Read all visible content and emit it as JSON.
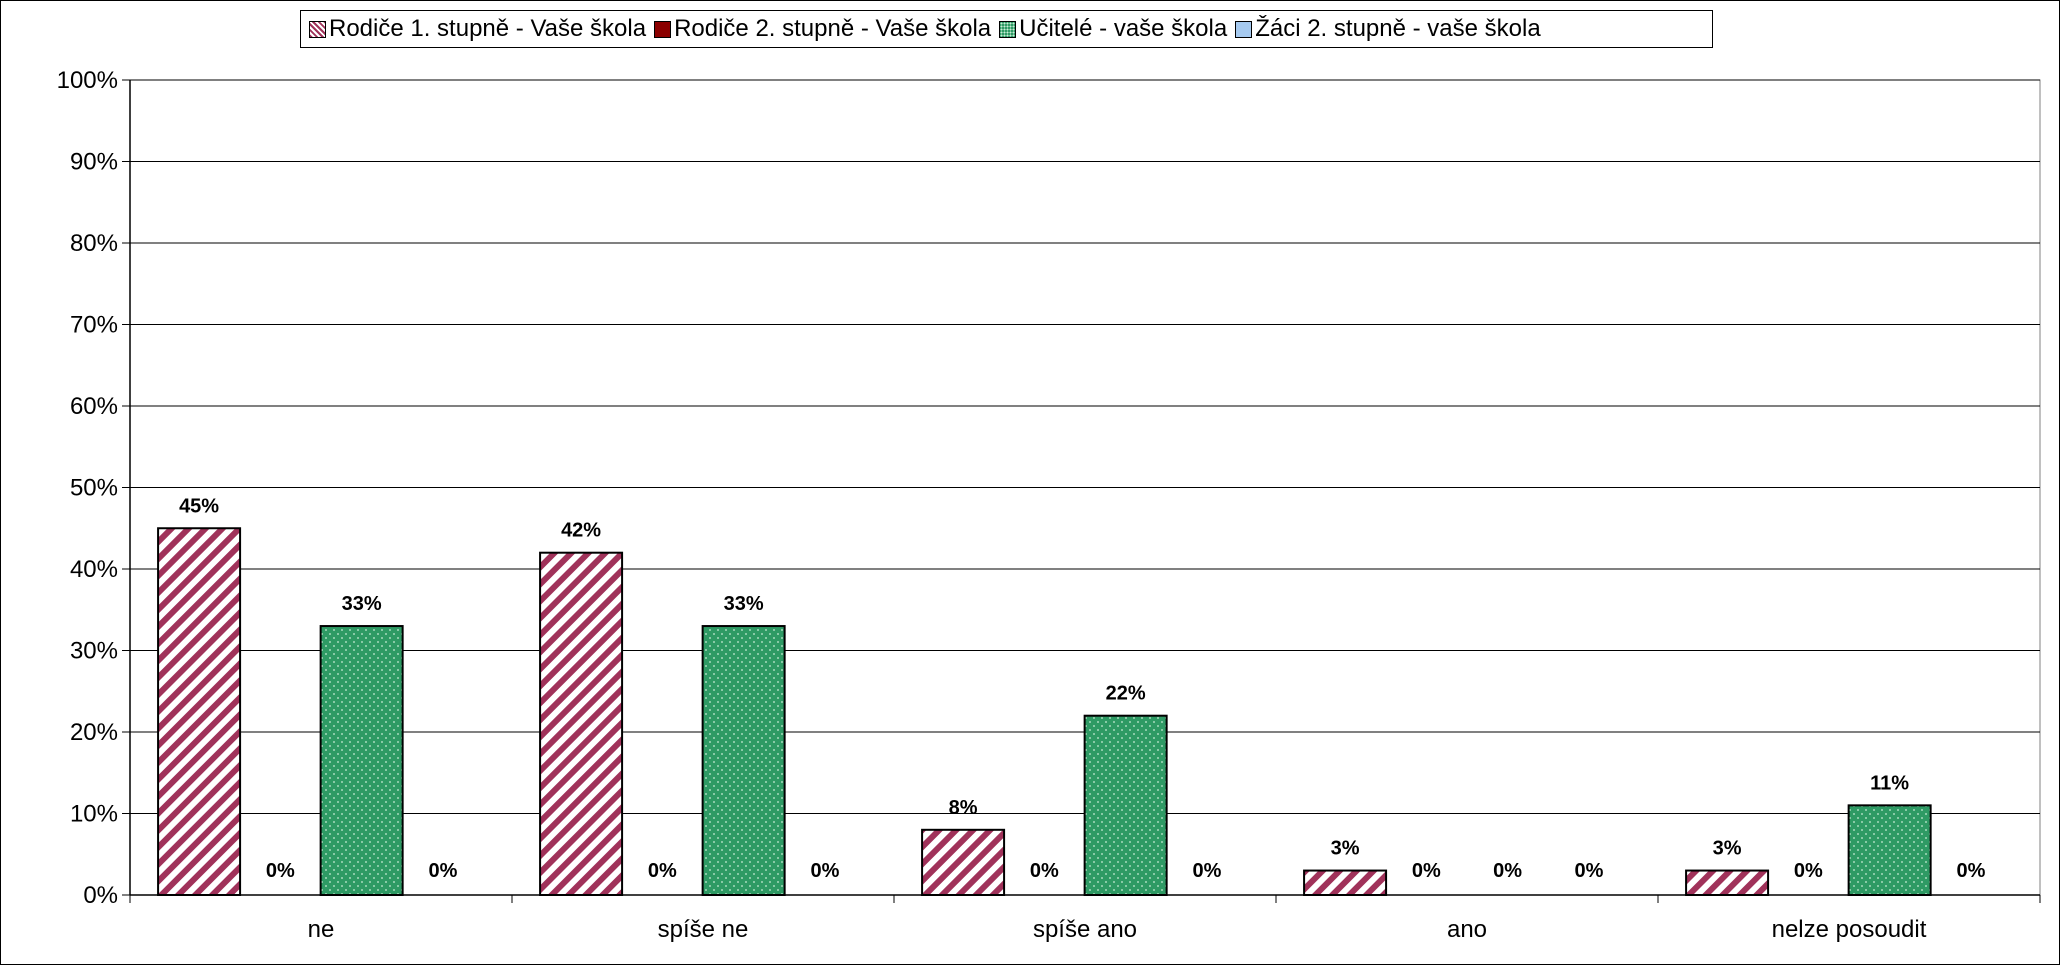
{
  "chart_data": {
    "type": "bar",
    "categories": [
      "ne",
      "spíše ne",
      "spíše ano",
      "ano",
      "nelze posoudit"
    ],
    "series": [
      {
        "name": "Rodiče 1. stupně - Vaše škola",
        "values": [
          45,
          42,
          8,
          3,
          3
        ],
        "labels": [
          "45%",
          "42%",
          "8%",
          "3%",
          "3%"
        ],
        "color": "#a0325a",
        "pattern": "diagonal-stripes"
      },
      {
        "name": "Rodiče 2. stupně - Vaše škola",
        "values": [
          0,
          0,
          0,
          0,
          0
        ],
        "labels": [
          "0%",
          "0%",
          "0%",
          "0%",
          "0%"
        ],
        "color": "#8b0000",
        "pattern": "solid"
      },
      {
        "name": "Učitelé - vaše škola",
        "values": [
          33,
          33,
          22,
          0,
          11
        ],
        "labels": [
          "33%",
          "33%",
          "22%",
          "0%",
          "11%"
        ],
        "color": "#2e9a64",
        "pattern": "dotted"
      },
      {
        "name": "Žáci 2. stupně - vaše škola",
        "values": [
          0,
          0,
          0,
          0,
          0
        ],
        "labels": [
          "0%",
          "0%",
          "0%",
          "0%",
          "0%"
        ],
        "color": "#a6caf0",
        "pattern": "solid"
      }
    ],
    "ylim": [
      0,
      100
    ],
    "yticks": [
      "0%",
      "10%",
      "20%",
      "30%",
      "40%",
      "50%",
      "60%",
      "70%",
      "80%",
      "90%",
      "100%"
    ],
    "grid": true,
    "legend_position": "top"
  }
}
